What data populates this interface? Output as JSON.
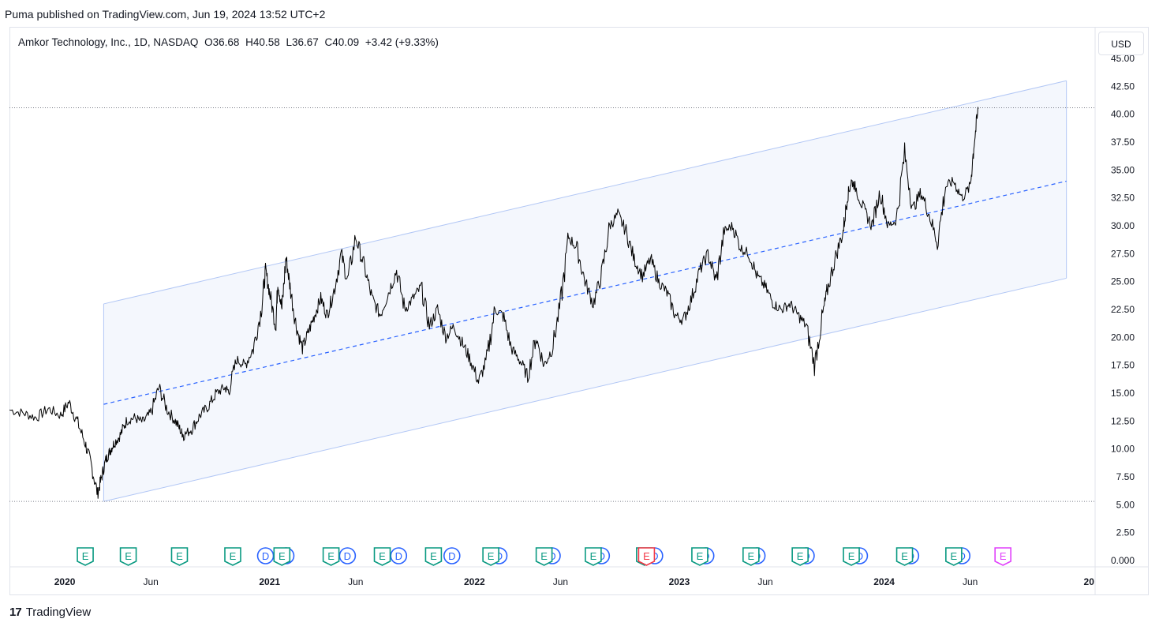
{
  "header": {
    "publisher": "Puma published on TradingView.com, Jun 19, 2024 13:52 UTC+2"
  },
  "legend": {
    "symbol": "Amkor Technology, Inc., 1D, NASDAQ",
    "open": "O36.68",
    "high": "H40.58",
    "low": "L36.67",
    "close": "C40.09",
    "change": "+3.42 (+9.33%)"
  },
  "currency": "USD",
  "footer": {
    "brand": "TradingView",
    "logo_mark": "17"
  },
  "colors": {
    "price_line": "#000000",
    "channel_line": "#b2c7f5",
    "channel_fill": "#f4f7fd",
    "mid_line": "#2962ff",
    "earnings": "#089981",
    "earnings_miss": "#f23645",
    "earnings_future": "#e040fb",
    "dividend": "#2962ff"
  },
  "chart_data": {
    "type": "line",
    "title": "Amkor Technology, Inc., 1D, NASDAQ",
    "y_ticks": [
      "0.000",
      "2.50",
      "5.00",
      "7.50",
      "10.00",
      "12.50",
      "15.00",
      "17.50",
      "20.00",
      "22.50",
      "25.00",
      "27.50",
      "30.00",
      "32.50",
      "35.00",
      "37.50",
      "40.00",
      "42.50",
      "45.00"
    ],
    "x_ticks": [
      "2020",
      "Jun",
      "2021",
      "Jun",
      "2022",
      "Jun",
      "2023",
      "Jun",
      "2024",
      "Jun",
      "20"
    ],
    "ylim": [
      0,
      45
    ],
    "xlim": [
      2019.73,
      2025.03
    ],
    "series": [
      {
        "x": [
          2019.73,
          2019.8,
          2019.86,
          2019.92,
          2019.98,
          2020.02,
          2020.06,
          2020.1,
          2020.13,
          2020.16,
          2020.18,
          2020.2,
          2020.22,
          2020.24,
          2020.27,
          2020.3,
          2020.34,
          2020.38,
          2020.42,
          2020.46,
          2020.5,
          2020.54,
          2020.57,
          2020.58,
          2020.62,
          2020.66,
          2020.7,
          2020.74,
          2020.78,
          2020.8,
          2020.84,
          2020.88,
          2020.92,
          2020.96,
          2020.98,
          2021.0,
          2021.03,
          2021.04,
          2021.06,
          2021.08,
          2021.1,
          2021.13,
          2021.16,
          2021.19,
          2021.22,
          2021.25,
          2021.28,
          2021.31,
          2021.35,
          2021.38,
          2021.42,
          2021.46,
          2021.5,
          2021.54,
          2021.58,
          2021.62,
          2021.66,
          2021.7,
          2021.74,
          2021.78,
          2021.82,
          2021.86,
          2021.9,
          2021.94,
          2021.98,
          2022.02,
          2022.06,
          2022.1,
          2022.14,
          2022.18,
          2022.22,
          2022.26,
          2022.3,
          2022.34,
          2022.38,
          2022.42,
          2022.46,
          2022.5,
          2022.54,
          2022.58,
          2022.62,
          2022.66,
          2022.7,
          2022.74,
          2022.78,
          2022.82,
          2022.86,
          2022.9,
          2022.94,
          2022.98,
          2023.02,
          2023.06,
          2023.1,
          2023.14,
          2023.18,
          2023.22,
          2023.26,
          2023.3,
          2023.34,
          2023.38,
          2023.42,
          2023.46,
          2023.5,
          2023.54,
          2023.58,
          2023.62,
          2023.66,
          2023.7,
          2023.72,
          2023.76,
          2023.8,
          2023.82,
          2023.84,
          2023.86,
          2023.9,
          2023.94,
          2023.98,
          2024.02,
          2024.06,
          2024.1,
          2024.14,
          2024.18,
          2024.22,
          2024.26,
          2024.3,
          2024.34,
          2024.38,
          2024.42,
          2024.44,
          2024.46
        ],
        "y": [
          13.5,
          13.2,
          12.8,
          13.6,
          13.0,
          14.2,
          12.5,
          10.5,
          8.5,
          6.0,
          7.5,
          9.0,
          9.8,
          10.5,
          11.2,
          12.5,
          12.8,
          12.4,
          13.2,
          15.5,
          13.5,
          12.5,
          11.5,
          11.2,
          11.8,
          13.0,
          13.8,
          15.0,
          15.5,
          15.2,
          18.0,
          17.5,
          19.0,
          22.5,
          26.0,
          24.0,
          21.0,
          25.0,
          22.5,
          27.2,
          24.5,
          21.0,
          19.0,
          20.5,
          22.0,
          23.5,
          22.0,
          23.8,
          27.5,
          25.0,
          29.0,
          26.5,
          23.5,
          22.0,
          24.0,
          26.0,
          22.5,
          23.5,
          24.5,
          21.0,
          22.5,
          20.0,
          21.0,
          19.5,
          18.0,
          16.0,
          18.0,
          22.5,
          22.0,
          19.0,
          18.0,
          16.5,
          20.0,
          17.5,
          19.0,
          23.0,
          29.0,
          28.0,
          25.0,
          23.0,
          25.5,
          30.0,
          31.0,
          29.5,
          27.0,
          25.5,
          27.0,
          25.0,
          24.0,
          22.0,
          21.5,
          23.5,
          26.0,
          27.5,
          25.0,
          29.5,
          30.0,
          28.0,
          27.5,
          25.5,
          24.5,
          23.0,
          22.5,
          23.0,
          22.0,
          21.0,
          17.5,
          22.0,
          24.0,
          27.0,
          29.5,
          32.5,
          34.0,
          33.5,
          31.5,
          30.0,
          33.0,
          30.0,
          30.5,
          36.5,
          31.5,
          33.0,
          31.0,
          28.5,
          33.5,
          34.0,
          32.5,
          33.5,
          37.5,
          40.5
        ]
      }
    ],
    "channel": {
      "upper": {
        "x": [
          2020.19,
          2024.89
        ],
        "y": [
          23.0,
          43.0
        ]
      },
      "lower": {
        "x": [
          2020.19,
          2024.89
        ],
        "y": [
          5.3,
          25.3
        ]
      },
      "middle": {
        "x": [
          2020.19,
          2024.89
        ],
        "y": [
          14.0,
          34.0
        ]
      }
    },
    "reference_lines": [
      40.58,
      5.3
    ],
    "events": {
      "earnings": [
        2020.1,
        2020.31,
        2020.56,
        2020.82,
        2021.06,
        2021.3,
        2021.55,
        2021.8,
        2022.08,
        2022.34,
        2022.58,
        2022.83,
        2023.1,
        2023.35,
        2023.59,
        2023.84,
        2024.1,
        2024.34
      ],
      "earnings_miss": [
        2022.84
      ],
      "earnings_future": [
        2024.58
      ],
      "dividends": [
        2020.98,
        2021.08,
        2021.38,
        2021.63,
        2021.89,
        2022.12,
        2022.38,
        2022.62,
        2022.88,
        2023.13,
        2023.38,
        2023.62,
        2023.88,
        2024.13,
        2024.38
      ]
    }
  }
}
